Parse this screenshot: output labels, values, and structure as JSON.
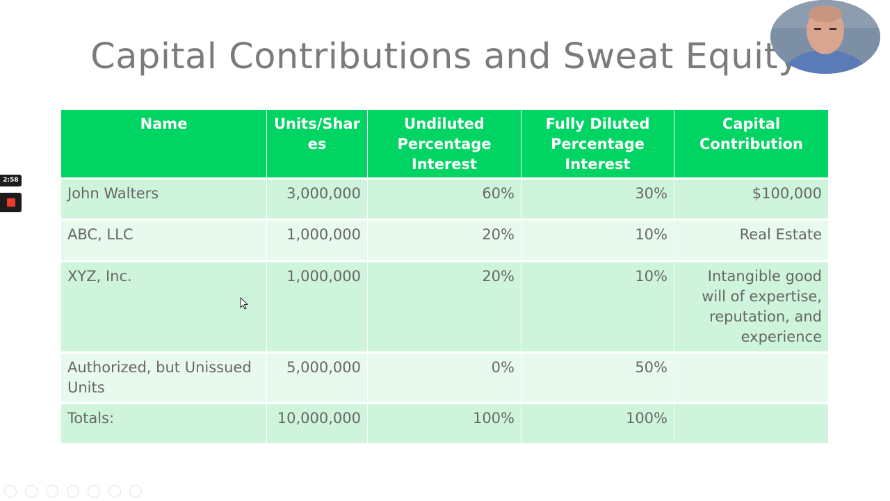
{
  "slide": {
    "title": "Capital Contributions and Sweat Equity"
  },
  "table": {
    "headers": [
      "Name",
      "Units/Shar es",
      "Undiluted Percentage Interest",
      "Fully Diluted Percentage Interest",
      "Capital Contribution"
    ],
    "rows": [
      [
        "John Walters",
        "3,000,000",
        "60%",
        "30%",
        "$100,000"
      ],
      [
        "ABC, LLC",
        "1,000,000",
        "20%",
        "10%",
        "Real Estate"
      ],
      [
        "XYZ, Inc.",
        "1,000,000",
        "20%",
        "10%",
        "Intangible good will of expertise, reputation, and experience"
      ],
      [
        "Authorized, but Unissued Units",
        "5,000,000",
        "0%",
        "50%",
        ""
      ],
      [
        "Totals:",
        "10,000,000",
        "100%",
        "100%",
        ""
      ]
    ]
  },
  "recorder": {
    "timer": "2:58"
  },
  "colors": {
    "header_green": "#00d462",
    "row_dark": "#cff4dc",
    "row_light": "#e8f9ee",
    "record_red": "#ef3b2d"
  }
}
